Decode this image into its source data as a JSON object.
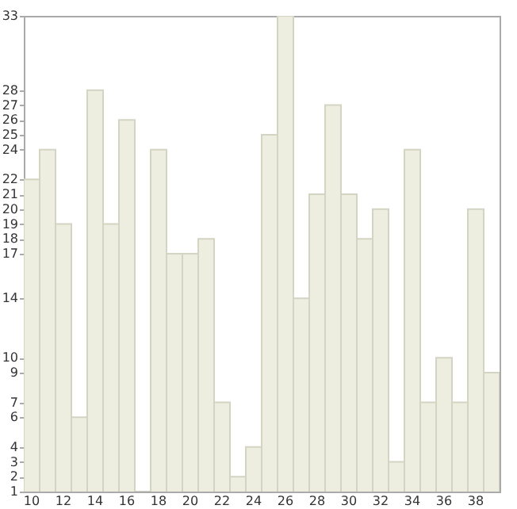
{
  "chart_data": {
    "type": "bar",
    "categories": [
      "10",
      null,
      "12",
      null,
      "14",
      null,
      "16",
      null,
      "18",
      null,
      "20",
      null,
      "22",
      null,
      "24",
      null,
      "26",
      null,
      "28",
      null,
      "30",
      null,
      "32",
      null,
      "34",
      null,
      "36",
      null,
      "38",
      null
    ],
    "values": [
      22,
      24,
      19,
      6,
      28,
      19,
      26,
      1,
      24,
      17,
      17,
      18,
      7,
      2,
      4,
      25,
      33,
      14,
      21,
      27,
      21,
      18,
      20,
      3,
      24,
      7,
      10,
      7,
      20,
      9
    ],
    "color": "#eeeee0",
    "ylim": [
      1,
      33
    ],
    "yticks": [
      1,
      2,
      3,
      4,
      6,
      7,
      9,
      10,
      14,
      17,
      18,
      19,
      20,
      21,
      22,
      24,
      25,
      26,
      27,
      28,
      33
    ],
    "grid": false
  }
}
